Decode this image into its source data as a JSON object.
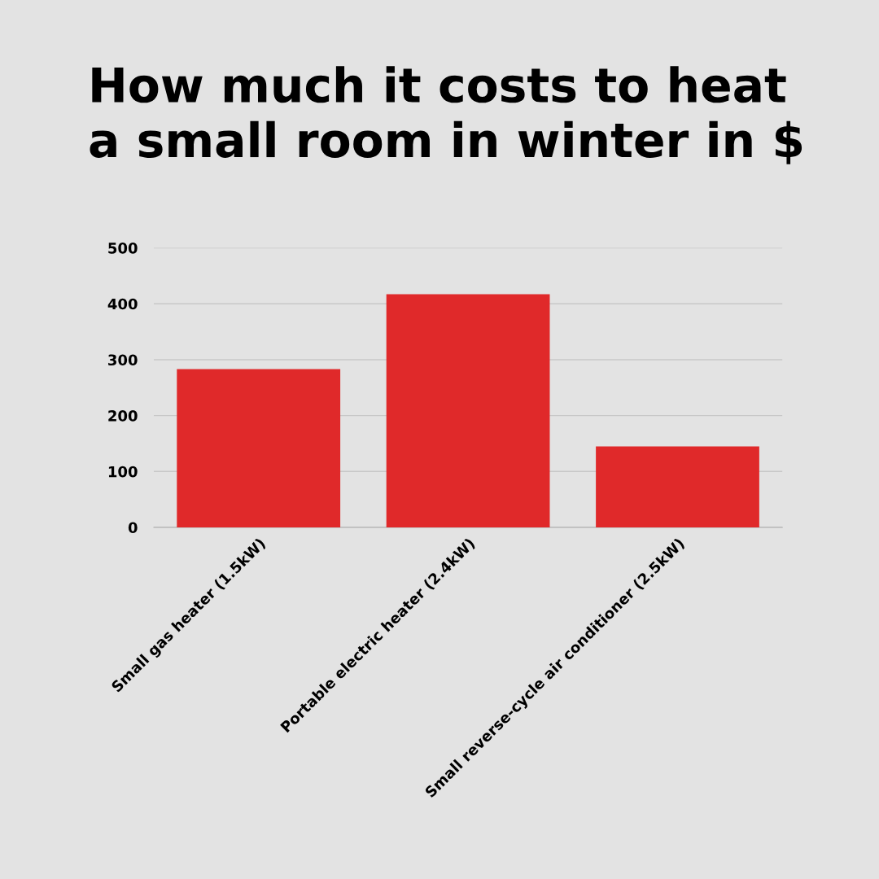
{
  "chart_data": {
    "type": "bar",
    "title": "How much it costs to heat\na small room in winter in $",
    "categories": [
      "Small gas heater (1.5kW)",
      "Portable electric heater (2.4kW)",
      "Small reverse-cycle air conditioner (2.5kW)"
    ],
    "values": [
      283,
      417,
      145
    ],
    "color": "#e0292a",
    "ylim": [
      0,
      500
    ],
    "yticks": [
      0,
      100,
      200,
      300,
      400,
      500
    ],
    "grid": "y",
    "legend": false
  }
}
